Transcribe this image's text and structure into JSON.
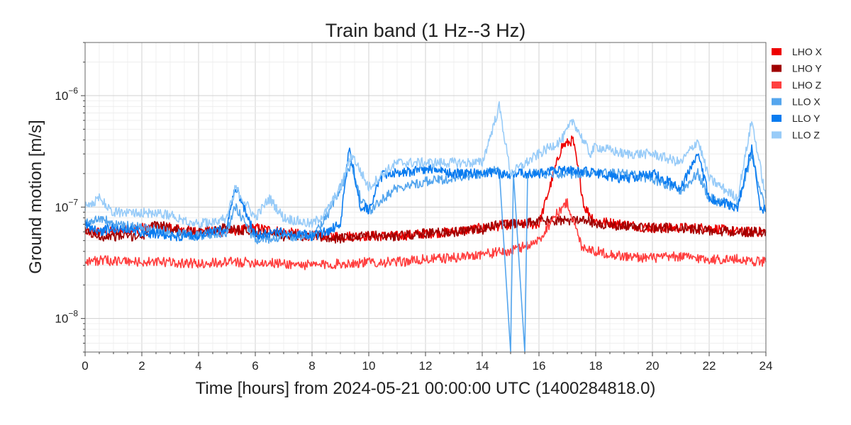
{
  "chart_data": {
    "type": "line",
    "title": "Train band (1 Hz--3 Hz)",
    "xlabel": "Time [hours] from 2024-05-21 00:00:00 UTC (1400284818.0)",
    "ylabel": "Ground motion [m/s]",
    "xlim": [
      0,
      24
    ],
    "ylim": [
      5e-09,
      3e-06
    ],
    "yscale": "log",
    "grid": true,
    "legend_position": "right",
    "x_ticks": [
      0,
      2,
      4,
      6,
      8,
      10,
      12,
      14,
      16,
      18,
      20,
      22,
      24
    ],
    "x_tick_labels": [
      "0",
      "2",
      "4",
      "6",
      "8",
      "10",
      "12",
      "14",
      "16",
      "18",
      "20",
      "22",
      "24"
    ],
    "y_ticks": [
      1e-08,
      1e-07,
      1e-06
    ],
    "y_tick_labels": [
      {
        "base": "10",
        "exp": "−8"
      },
      {
        "base": "10",
        "exp": "−7"
      },
      {
        "base": "10",
        "exp": "−6"
      }
    ],
    "series": [
      {
        "name": "LHO X",
        "color": "#ee0000",
        "x": [
          0,
          1,
          2,
          3,
          4,
          5,
          6,
          7,
          8,
          9,
          10,
          11,
          12,
          13,
          14,
          15,
          16,
          16.8,
          17.2,
          17.6,
          18,
          19,
          20,
          21,
          22,
          23,
          24
        ],
        "y": [
          6e-08,
          6e-08,
          6.5e-08,
          6.5e-08,
          6e-08,
          6e-08,
          6.5e-08,
          6e-08,
          5.5e-08,
          5.5e-08,
          5.5e-08,
          5.5e-08,
          5.8e-08,
          6e-08,
          6.5e-08,
          7e-08,
          7e-08,
          3.5e-07,
          4e-07,
          1e-07,
          7.5e-08,
          7e-08,
          6.5e-08,
          6.5e-08,
          6.5e-08,
          6e-08,
          6e-08
        ]
      },
      {
        "name": "LHO Y",
        "color": "#a00000",
        "x": [
          0,
          0.5,
          1,
          2,
          2.5,
          3,
          3.5,
          4,
          5,
          6,
          7,
          8,
          9,
          10,
          11,
          12,
          13,
          14,
          14.5,
          15,
          16,
          17,
          17.5,
          18,
          19,
          20,
          21,
          22,
          23,
          24
        ],
        "y": [
          6e-08,
          5.5e-08,
          5.5e-08,
          5.5e-08,
          7e-08,
          6.5e-08,
          6e-08,
          6e-08,
          6.5e-08,
          6e-08,
          5.5e-08,
          5.5e-08,
          5.2e-08,
          5.5e-08,
          5.5e-08,
          5.8e-08,
          6e-08,
          6.2e-08,
          7e-08,
          7e-08,
          7.5e-08,
          7.5e-08,
          8e-08,
          7e-08,
          6.8e-08,
          6.5e-08,
          6.5e-08,
          6.2e-08,
          6e-08,
          6e-08
        ]
      },
      {
        "name": "LHO Z",
        "color": "#ff4040",
        "x": [
          0,
          1,
          2,
          3,
          4,
          5,
          6,
          7,
          8,
          9,
          10,
          11,
          12,
          13,
          14,
          15,
          16,
          16.5,
          17,
          17.5,
          18,
          19,
          20,
          21,
          22,
          23,
          24
        ],
        "y": [
          3.3e-08,
          3.3e-08,
          3.2e-08,
          3.2e-08,
          3.1e-08,
          3.2e-08,
          3.2e-08,
          3.1e-08,
          3e-08,
          3.1e-08,
          3.2e-08,
          3.2e-08,
          3.4e-08,
          3.5e-08,
          3.8e-08,
          4e-08,
          5e-08,
          8e-08,
          1.1e-07,
          4.5e-08,
          4e-08,
          3.6e-08,
          3.5e-08,
          3.6e-08,
          3.4e-08,
          3.4e-08,
          3.2e-08
        ]
      },
      {
        "name": "LLO X",
        "color": "#55a6ee",
        "x": [
          0,
          0.5,
          1,
          2,
          3,
          4,
          5,
          5.3,
          6,
          7,
          8,
          8.5,
          9,
          9.4,
          9.7,
          10,
          10.5,
          11,
          12,
          13,
          14,
          14.6,
          15.0,
          15.1,
          15.5,
          15.6,
          16,
          17,
          18,
          19,
          20,
          21,
          21.6,
          22,
          23,
          23.5,
          24
        ],
        "y": [
          7e-08,
          8e-08,
          7e-08,
          6.5e-08,
          6e-08,
          5.5e-08,
          6e-08,
          1e-07,
          5e-08,
          5.5e-08,
          5.5e-08,
          8e-08,
          1.5e-07,
          2.5e-07,
          1.2e-07,
          9e-08,
          1.2e-07,
          1.5e-07,
          1.7e-07,
          1.8e-07,
          2e-07,
          2.2e-07,
          5e-09,
          2e-07,
          5e-09,
          2e-07,
          2e-07,
          2e-07,
          2e-07,
          2e-07,
          1.8e-07,
          1.4e-07,
          2e-07,
          1.2e-07,
          1e-07,
          3e-07,
          9e-08
        ]
      },
      {
        "name": "LLO Y",
        "color": "#0a7cf0",
        "x": [
          0,
          0.5,
          1,
          2,
          3,
          4,
          5,
          5.3,
          6,
          7,
          8,
          8.5,
          9,
          9.3,
          9.7,
          10,
          10.5,
          11,
          12,
          13,
          14,
          15,
          16,
          17,
          18,
          19,
          20,
          21,
          21.6,
          22,
          23,
          23.5,
          23.8,
          24
        ],
        "y": [
          7e-08,
          6e-08,
          6.5e-08,
          6e-08,
          5.5e-08,
          5.5e-08,
          6.5e-08,
          1.5e-07,
          5.5e-08,
          6e-08,
          5.5e-08,
          6e-08,
          7e-08,
          3.5e-07,
          1e-07,
          9.5e-08,
          2e-07,
          2e-07,
          2.2e-07,
          2e-07,
          2e-07,
          2e-07,
          2e-07,
          2.2e-07,
          2e-07,
          1.8e-07,
          2e-07,
          1.5e-07,
          3e-07,
          1.2e-07,
          1e-07,
          3.5e-07,
          1e-07,
          9.5e-08
        ]
      },
      {
        "name": "LLO Z",
        "color": "#99ccf8",
        "x": [
          0,
          0.5,
          1,
          2,
          3,
          4,
          5,
          5.3,
          6,
          6.5,
          7,
          8,
          8.5,
          9,
          9.4,
          10,
          10.5,
          11,
          12,
          13,
          14,
          14.6,
          15,
          16,
          16.8,
          17.2,
          17.8,
          18,
          19,
          20,
          21,
          21.6,
          22,
          23,
          23.5,
          24
        ],
        "y": [
          1e-07,
          1.2e-07,
          9e-08,
          9e-08,
          8.5e-08,
          7e-08,
          8e-08,
          1.5e-07,
          8e-08,
          1.2e-07,
          8e-08,
          7e-08,
          9e-08,
          1.5e-07,
          3e-07,
          1.5e-07,
          2e-07,
          2.5e-07,
          2.5e-07,
          2.5e-07,
          2.5e-07,
          8e-07,
          2e-07,
          3e-07,
          4e-07,
          6e-07,
          3e-07,
          3.5e-07,
          3e-07,
          3e-07,
          2.5e-07,
          4e-07,
          1.8e-07,
          1.2e-07,
          6e-07,
          1.2e-07
        ]
      }
    ]
  }
}
